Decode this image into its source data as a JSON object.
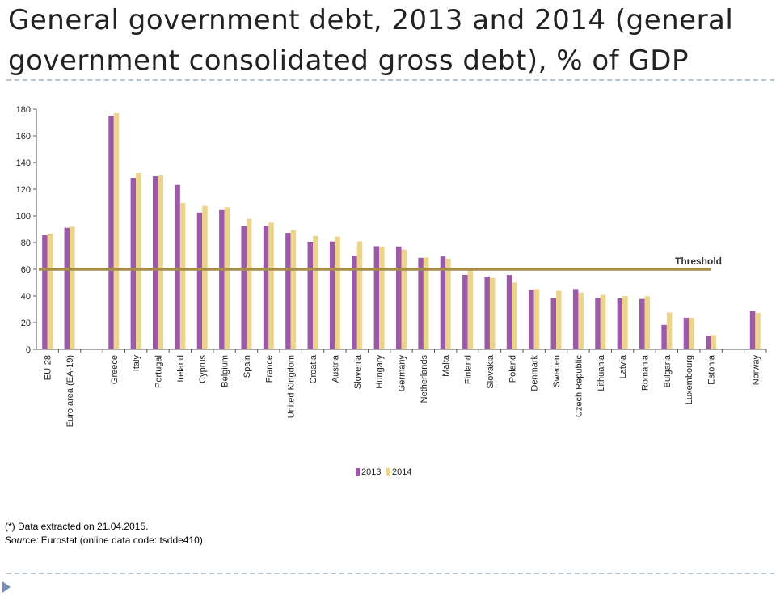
{
  "title": "General government debt, 2013 and 2014 (general government consolidated gross debt), % of GDP",
  "colors": {
    "y2013": "#9b59a8",
    "y2014": "#ecd48a",
    "threshold": "#a78d4a",
    "accent": "#7a8fb8"
  },
  "footnote": {
    "line1": "(*) Data extracted on 21.04.2015.",
    "source_label": "Source:",
    "source_text": " Eurostat (online data code: tsdde410)"
  },
  "chart_data": {
    "type": "bar",
    "title": "",
    "xlabel": "",
    "ylabel": "",
    "ylim": [
      0,
      180
    ],
    "yticks": [
      0,
      20,
      40,
      60,
      80,
      100,
      120,
      140,
      160,
      180
    ],
    "grid": false,
    "legend_position": "bottom-center",
    "categories": [
      "EU-28",
      "Euro area (EA-19)",
      "",
      "Greece",
      "Italy",
      "Portugal",
      "Ireland",
      "Cyprus",
      "Belgium",
      "Spain",
      "France",
      "United Kingdom",
      "Croatia",
      "Austria",
      "Slovenia",
      "Hungary",
      "Germany",
      "Netherlands",
      "Malta",
      "Finland",
      "Slovakia",
      "Poland",
      "Denmark",
      "Sweden",
      "Czech Republic",
      "Lithuania",
      "Latvia",
      "Romania",
      "Bulgaria",
      "Luxembourg",
      "Estonia",
      "",
      "Norway"
    ],
    "series": [
      {
        "name": "2013",
        "values": [
          85.5,
          91.1,
          null,
          175.0,
          128.5,
          129.7,
          123.2,
          102.5,
          104.4,
          92.1,
          92.3,
          87.2,
          80.6,
          80.8,
          70.3,
          77.3,
          77.1,
          68.6,
          69.6,
          55.8,
          54.6,
          55.7,
          44.6,
          38.7,
          45.2,
          38.8,
          38.2,
          37.8,
          18.3,
          23.7,
          10.1,
          null,
          29.0
        ]
      },
      {
        "name": "2014",
        "values": [
          86.8,
          91.9,
          null,
          177.1,
          132.1,
          130.2,
          109.7,
          107.5,
          106.5,
          97.7,
          95.0,
          89.4,
          85.0,
          84.5,
          80.9,
          76.9,
          74.7,
          68.8,
          68.0,
          59.3,
          53.6,
          50.1,
          45.2,
          43.9,
          42.6,
          40.9,
          40.0,
          39.8,
          27.6,
          23.6,
          10.6,
          null,
          27.3
        ]
      }
    ],
    "annotations": [
      {
        "text": "Threshold",
        "y": 60
      }
    ]
  }
}
